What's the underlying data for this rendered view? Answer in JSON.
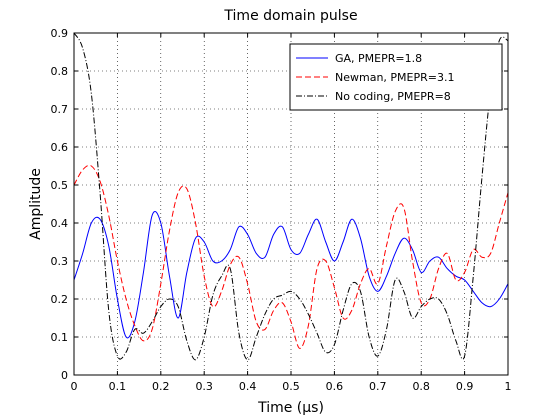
{
  "chart_data": {
    "type": "line",
    "title": "Time domain pulse",
    "xlabel": "Time (μs)",
    "ylabel": "Amplitude",
    "xlim": [
      0,
      1
    ],
    "ylim": [
      0,
      0.9
    ],
    "xticks": [
      "0",
      "0.1",
      "0.2",
      "0.3",
      "0.4",
      "0.5",
      "0.6",
      "0.7",
      "0.8",
      "0.9",
      "1"
    ],
    "yticks": [
      "0",
      "0.1",
      "0.2",
      "0.3",
      "0.4",
      "0.5",
      "0.6",
      "0.7",
      "0.8",
      "0.9"
    ],
    "grid": true,
    "legend_position": "top-right",
    "x": [
      0.0,
      0.02,
      0.04,
      0.06,
      0.08,
      0.1,
      0.12,
      0.14,
      0.16,
      0.18,
      0.2,
      0.22,
      0.24,
      0.26,
      0.28,
      0.3,
      0.32,
      0.34,
      0.36,
      0.38,
      0.4,
      0.42,
      0.44,
      0.46,
      0.48,
      0.5,
      0.52,
      0.54,
      0.56,
      0.58,
      0.6,
      0.62,
      0.64,
      0.66,
      0.68,
      0.7,
      0.72,
      0.74,
      0.76,
      0.78,
      0.8,
      0.82,
      0.84,
      0.86,
      0.88,
      0.9,
      0.92,
      0.94,
      0.96,
      0.98,
      1.0
    ],
    "series": [
      {
        "name": "GA, PMEPR=1.8",
        "color": "#0000ff",
        "style": "solid",
        "values": [
          0.25,
          0.32,
          0.4,
          0.41,
          0.34,
          0.2,
          0.1,
          0.14,
          0.27,
          0.42,
          0.4,
          0.26,
          0.15,
          0.27,
          0.36,
          0.35,
          0.3,
          0.3,
          0.33,
          0.39,
          0.37,
          0.32,
          0.31,
          0.37,
          0.39,
          0.33,
          0.32,
          0.37,
          0.41,
          0.35,
          0.3,
          0.35,
          0.41,
          0.36,
          0.26,
          0.22,
          0.26,
          0.32,
          0.36,
          0.33,
          0.27,
          0.3,
          0.31,
          0.28,
          0.26,
          0.25,
          0.22,
          0.19,
          0.18,
          0.2,
          0.24
        ]
      },
      {
        "name": "Newman, PMEPR=3.1",
        "color": "#ff0000",
        "style": "dashed",
        "values": [
          0.5,
          0.54,
          0.55,
          0.51,
          0.42,
          0.3,
          0.2,
          0.13,
          0.09,
          0.12,
          0.24,
          0.38,
          0.48,
          0.49,
          0.4,
          0.26,
          0.18,
          0.22,
          0.29,
          0.31,
          0.24,
          0.14,
          0.12,
          0.17,
          0.19,
          0.14,
          0.07,
          0.13,
          0.28,
          0.3,
          0.23,
          0.15,
          0.17,
          0.24,
          0.28,
          0.24,
          0.34,
          0.43,
          0.44,
          0.3,
          0.19,
          0.2,
          0.28,
          0.32,
          0.25,
          0.27,
          0.33,
          0.31,
          0.32,
          0.4,
          0.48
        ]
      },
      {
        "name": "No coding, PMEPR=8",
        "color": "#000000",
        "style": "dashdot",
        "values": [
          0.9,
          0.86,
          0.74,
          0.48,
          0.17,
          0.05,
          0.06,
          0.12,
          0.11,
          0.14,
          0.18,
          0.2,
          0.18,
          0.09,
          0.04,
          0.1,
          0.21,
          0.26,
          0.28,
          0.11,
          0.04,
          0.1,
          0.16,
          0.2,
          0.21,
          0.22,
          0.2,
          0.16,
          0.11,
          0.06,
          0.08,
          0.17,
          0.24,
          0.22,
          0.1,
          0.05,
          0.12,
          0.25,
          0.22,
          0.15,
          0.18,
          0.2,
          0.2,
          0.16,
          0.09,
          0.05,
          0.26,
          0.52,
          0.75,
          0.88,
          0.88
        ]
      }
    ]
  }
}
